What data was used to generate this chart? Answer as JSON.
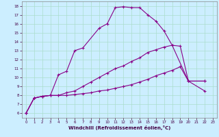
{
  "xlabel": "Windchill (Refroidissement éolien,°C)",
  "bg_color": "#cceeff",
  "line_color": "#880088",
  "grid_color": "#aadddd",
  "ylim": [
    5.5,
    18.5
  ],
  "xlim": [
    -0.5,
    23.5
  ],
  "yticks": [
    6,
    7,
    8,
    9,
    10,
    11,
    12,
    13,
    14,
    15,
    16,
    17,
    18
  ],
  "xticks": [
    0,
    1,
    2,
    3,
    4,
    5,
    6,
    7,
    8,
    9,
    10,
    11,
    12,
    13,
    14,
    15,
    16,
    17,
    18,
    19,
    20,
    21,
    22,
    23
  ],
  "series": [
    {
      "x": [
        0,
        1,
        2,
        3,
        4,
        5,
        6,
        7,
        9,
        10,
        11,
        12,
        13,
        14,
        15,
        16,
        17,
        18,
        20,
        22
      ],
      "y": [
        6.0,
        7.7,
        7.9,
        8.0,
        10.3,
        10.7,
        13.0,
        13.3,
        15.5,
        16.0,
        17.8,
        17.9,
        17.8,
        17.8,
        17.0,
        16.3,
        15.2,
        13.6,
        9.6,
        9.6
      ]
    },
    {
      "x": [
        0,
        1,
        2,
        3,
        4,
        5,
        6,
        7,
        8,
        9,
        10,
        11,
        12,
        13,
        14,
        15,
        16,
        17,
        18,
        19,
        20,
        22
      ],
      "y": [
        6.0,
        7.7,
        7.9,
        8.0,
        8.0,
        8.3,
        8.5,
        9.0,
        9.5,
        10.0,
        10.5,
        11.0,
        11.3,
        11.8,
        12.2,
        12.8,
        13.1,
        13.4,
        13.6,
        13.5,
        9.6,
        9.6
      ]
    },
    {
      "x": [
        0,
        1,
        2,
        3,
        4,
        5,
        6,
        7,
        8,
        9,
        10,
        11,
        12,
        13,
        14,
        15,
        16,
        17,
        18,
        19,
        20,
        22
      ],
      "y": [
        6.0,
        7.7,
        7.9,
        8.0,
        8.0,
        8.0,
        8.1,
        8.2,
        8.3,
        8.5,
        8.6,
        8.8,
        9.0,
        9.2,
        9.5,
        9.8,
        10.2,
        10.5,
        10.8,
        11.2,
        9.6,
        8.5
      ]
    }
  ]
}
